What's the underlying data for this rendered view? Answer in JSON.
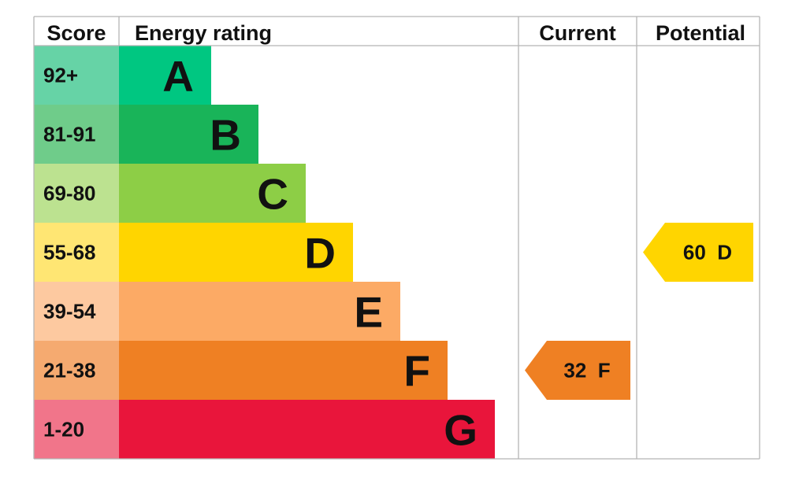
{
  "headers": {
    "score": "Score",
    "energy_rating": "Energy rating",
    "current": "Current",
    "potential": "Potential"
  },
  "chart_data": {
    "type": "bar",
    "categories": [
      "A",
      "B",
      "C",
      "D",
      "E",
      "F",
      "G"
    ],
    "bands": [
      {
        "letter": "A",
        "score_range": "92+",
        "bar_color": "#00c781",
        "score_bg": "#66d3a6"
      },
      {
        "letter": "B",
        "score_range": "81-91",
        "bar_color": "#19b459",
        "score_bg": "#6fcc8a"
      },
      {
        "letter": "C",
        "score_range": "69-80",
        "bar_color": "#8dce46",
        "score_bg": "#bce290"
      },
      {
        "letter": "D",
        "score_range": "55-68",
        "bar_color": "#ffd500",
        "score_bg": "#ffe673"
      },
      {
        "letter": "E",
        "score_range": "39-54",
        "bar_color": "#fcaa65",
        "score_bg": "#fdc9a0"
      },
      {
        "letter": "F",
        "score_range": "21-38",
        "bar_color": "#ef8023",
        "score_bg": "#f5aa70"
      },
      {
        "letter": "G",
        "score_range": "1-20",
        "bar_color": "#e9153b",
        "score_bg": "#f1758a"
      }
    ],
    "current": {
      "value": 32,
      "letter": "F",
      "text": "32  F",
      "color": "#ef8023"
    },
    "potential": {
      "value": 60,
      "letter": "D",
      "text": "60  D",
      "color": "#ffd500"
    }
  },
  "colors": {
    "grid_line": "#b5b5b5",
    "text": "#111111"
  }
}
